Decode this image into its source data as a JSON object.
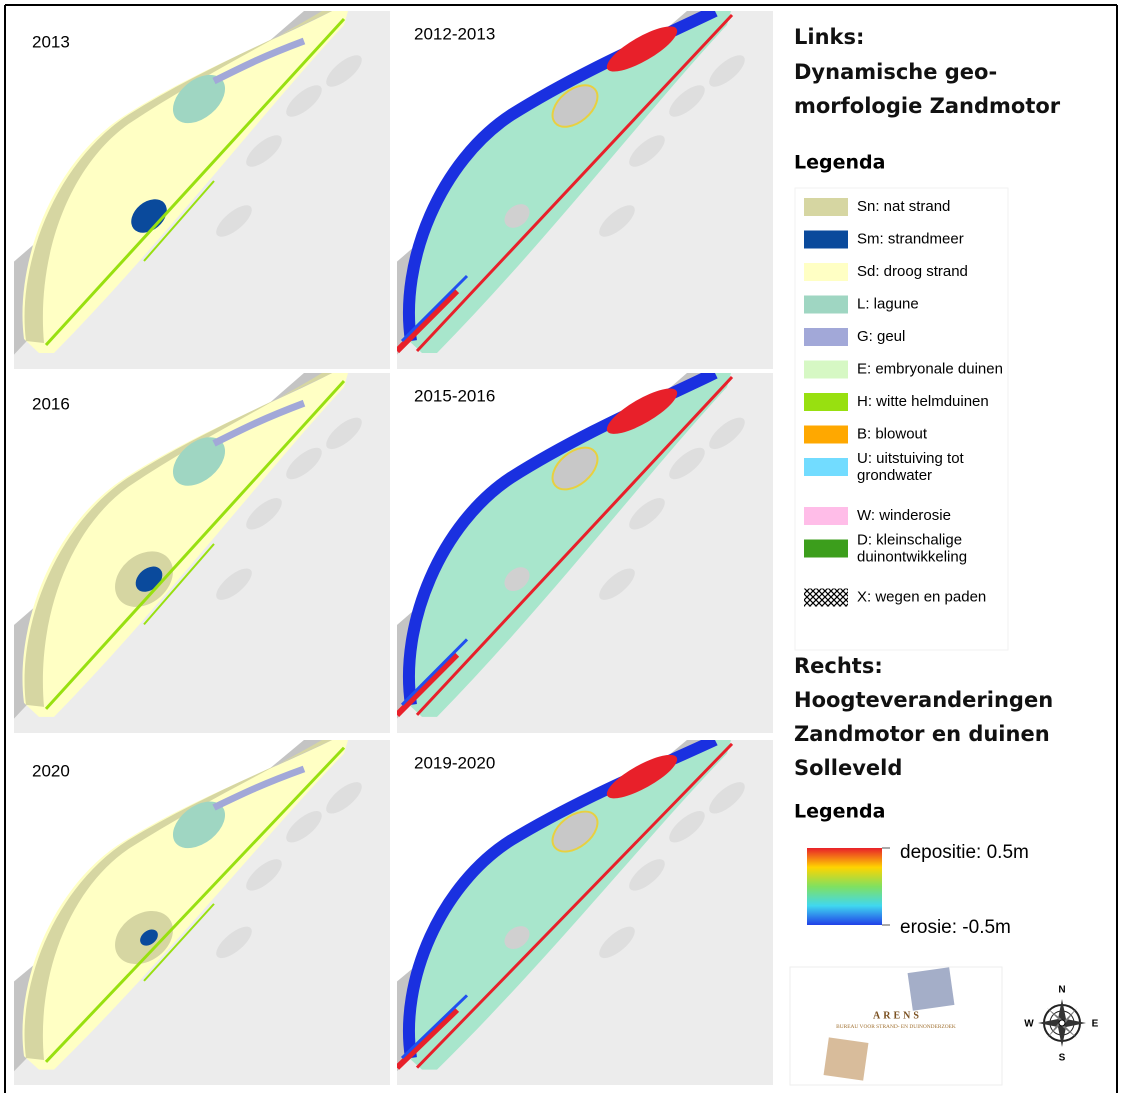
{
  "panels": [
    {
      "left": "2013",
      "right": "2012-2013"
    },
    {
      "left": "2016",
      "right": "2015-2016"
    },
    {
      "left": "2020",
      "right": "2019-2020"
    }
  ],
  "legend_left": {
    "heading": [
      "Links:",
      "Dynamische geo-",
      "morfologie Zandmotor"
    ],
    "title": "Legenda",
    "items": [
      {
        "label": "Sn: nat strand",
        "color": "#d6d6a2"
      },
      {
        "label": "Sm: strandmeer",
        "color": "#0a4a9c"
      },
      {
        "label": "Sd: droog strand",
        "color": "#ffffc4"
      },
      {
        "label": "L: lagune",
        "color": "#9fd6c2"
      },
      {
        "label": "G: geul",
        "color": "#a2a8d8"
      },
      {
        "label": "E: embryonale duinen",
        "color": "#d6f8c4"
      },
      {
        "label": "H: witte helmduinen",
        "color": "#98e010"
      },
      {
        "label": "B: blowout",
        "color": "#ffa800"
      },
      {
        "label": "U: uitstuiving tot grondwater",
        "color": "#72dcff"
      },
      {
        "label": "W: winderosie",
        "color": "#ffbde8"
      },
      {
        "label": "D: kleinschalige duinontwikkeling",
        "color": "#3c9e1c"
      },
      {
        "label": "X: wegen en paden"
      }
    ]
  },
  "legend_right": {
    "heading": [
      "Rechts:",
      "Hoogteveranderingen",
      "Zandmotor en duinen",
      "Solleveld"
    ],
    "title": "Legenda",
    "max_label": "depositie: 0.5m",
    "min_label": "erosie: -0.5m",
    "colors": [
      "#e8202a",
      "#ffd400",
      "#80e060",
      "#40d8f0",
      "#2040e8"
    ]
  },
  "logo": {
    "name": "ARENS",
    "subtitle": "BUREAU VOOR STRAND- EN DUINONDERZOEK"
  },
  "compass": {
    "n": "N",
    "e": "E",
    "s": "S",
    "w": "W"
  }
}
